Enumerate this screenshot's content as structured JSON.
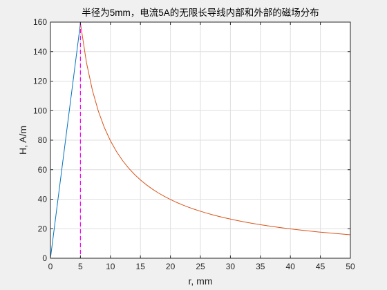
{
  "chart_data": {
    "type": "line",
    "title": "半径为5mm，电流5A的无限长导线内部和外部的磁场分布",
    "xlabel": "r, mm",
    "ylabel": "H, A/m",
    "xlim": [
      0,
      50
    ],
    "ylim": [
      0,
      160
    ],
    "xticks": [
      0,
      5,
      10,
      15,
      20,
      25,
      30,
      35,
      40,
      45,
      50
    ],
    "yticks": [
      0,
      20,
      40,
      60,
      80,
      100,
      120,
      140,
      160
    ],
    "grid": true,
    "legend": "none",
    "radius_mm": 5,
    "peak_H": 159.15,
    "series": [
      {
        "color": "#0072bd",
        "x": [
          0,
          5
        ],
        "y": [
          0,
          159.15
        ]
      },
      {
        "color": "#d95319",
        "x": [
          5,
          6,
          7,
          8,
          9,
          10,
          11,
          12,
          13,
          14,
          15,
          16,
          17,
          18,
          19,
          20,
          21,
          22,
          23,
          24,
          25,
          26,
          27,
          28,
          29,
          30,
          31,
          32,
          33,
          34,
          35,
          36,
          37,
          38,
          39,
          40,
          41,
          42,
          43,
          44,
          45,
          46,
          47,
          48,
          49,
          50
        ],
        "y": [
          159.15,
          132.63,
          113.68,
          99.47,
          88.42,
          79.58,
          72.34,
          66.31,
          61.21,
          56.84,
          53.05,
          49.74,
          46.81,
          44.21,
          41.88,
          39.79,
          37.89,
          36.17,
          34.6,
          33.16,
          31.83,
          30.61,
          29.47,
          28.42,
          27.44,
          26.53,
          25.67,
          24.87,
          24.11,
          23.41,
          22.74,
          22.1,
          21.51,
          20.94,
          20.41,
          19.89,
          19.41,
          18.95,
          18.51,
          18.09,
          17.68,
          17.3,
          16.93,
          16.58,
          16.24,
          15.92
        ]
      }
    ],
    "marker_line": {
      "x": 5,
      "color": "#ff00ff",
      "style": "dashed"
    }
  }
}
